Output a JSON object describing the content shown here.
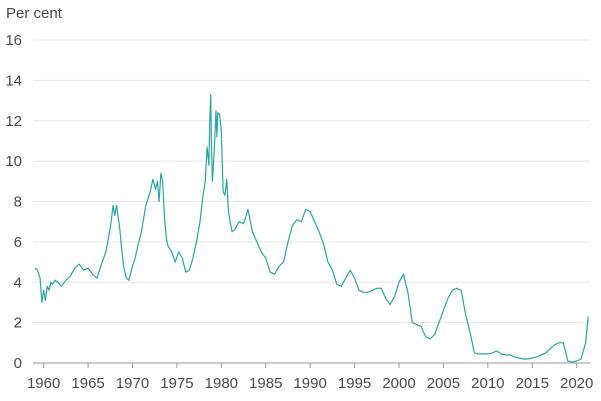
{
  "chart_data": {
    "type": "line",
    "title": "",
    "xlabel": "",
    "ylabel": "Per cent",
    "xlim": [
      1958.8,
      2021.5
    ],
    "ylim": [
      0,
      16
    ],
    "y_ticks": [
      0,
      2,
      4,
      6,
      8,
      10,
      12,
      14,
      16
    ],
    "x_ticks": [
      1960,
      1965,
      1970,
      1975,
      1980,
      1985,
      1990,
      1995,
      2000,
      2005,
      2010,
      2015,
      2020
    ],
    "grid": "horizontal",
    "legend": "none",
    "colors": {
      "series": "#2aa6a2"
    },
    "series": [
      {
        "x": [
          1959.0,
          1959.3,
          1959.6,
          1959.8,
          1960.0,
          1960.2,
          1960.4,
          1960.6,
          1960.8,
          1961.0,
          1961.3,
          1961.6,
          1962.0,
          1962.5,
          1963.0,
          1963.5,
          1964.0,
          1964.5,
          1965.0,
          1965.5,
          1966.0,
          1966.5,
          1967.0,
          1967.3,
          1967.6,
          1967.8,
          1968.0,
          1968.2,
          1968.4,
          1968.6,
          1968.8,
          1969.0,
          1969.3,
          1969.6,
          1970.0,
          1970.3,
          1970.6,
          1971.0,
          1971.5,
          1972.0,
          1972.3,
          1972.6,
          1972.8,
          1973.0,
          1973.2,
          1973.4,
          1973.6,
          1973.8,
          1974.0,
          1974.4,
          1974.8,
          1975.2,
          1975.6,
          1976.0,
          1976.4,
          1976.8,
          1977.2,
          1977.6,
          1977.9,
          1978.2,
          1978.4,
          1978.6,
          1978.7,
          1978.8,
          1978.9,
          1979.0,
          1979.2,
          1979.4,
          1979.5,
          1979.6,
          1979.8,
          1980.0,
          1980.2,
          1980.4,
          1980.6,
          1980.8,
          1981.0,
          1981.2,
          1981.5,
          1982.0,
          1982.5,
          1983.0,
          1983.5,
          1984.0,
          1984.5,
          1985.0,
          1985.5,
          1986.0,
          1986.5,
          1987.0,
          1987.5,
          1988.0,
          1988.5,
          1989.0,
          1989.5,
          1990.0,
          1990.5,
          1991.0,
          1991.5,
          1992.0,
          1992.5,
          1993.0,
          1993.5,
          1994.0,
          1994.5,
          1995.0,
          1995.5,
          1996.0,
          1996.5,
          1997.0,
          1997.5,
          1998.0,
          1998.5,
          1999.0,
          1999.5,
          2000.0,
          2000.5,
          2001.0,
          2001.5,
          2002.0,
          2002.5,
          2003.0,
          2003.5,
          2004.0,
          2004.5,
          2005.0,
          2005.5,
          2006.0,
          2006.5,
          2007.0,
          2007.5,
          2008.0,
          2008.5,
          2009.0,
          2009.5,
          2010.0,
          2010.5,
          2011.0,
          2011.5,
          2012.0,
          2012.5,
          2013.0,
          2013.5,
          2014.0,
          2014.5,
          2015.0,
          2015.5,
          2016.0,
          2016.5,
          2017.0,
          2017.5,
          2018.0,
          2018.5,
          2019.0,
          2019.5,
          2020.0,
          2020.5,
          2021.0,
          2021.3
        ],
        "y": [
          4.7,
          4.6,
          4.2,
          3.0,
          3.6,
          3.1,
          3.8,
          3.6,
          4.0,
          3.9,
          4.1,
          4.0,
          3.8,
          4.1,
          4.3,
          4.7,
          4.9,
          4.6,
          4.7,
          4.4,
          4.2,
          4.9,
          5.5,
          6.2,
          7.0,
          7.8,
          7.3,
          7.8,
          7.2,
          6.5,
          5.6,
          4.8,
          4.2,
          4.1,
          4.8,
          5.2,
          5.8,
          6.5,
          7.8,
          8.5,
          9.1,
          8.6,
          9.0,
          8.0,
          9.4,
          9.0,
          7.2,
          6.2,
          5.8,
          5.5,
          5.0,
          5.5,
          5.2,
          4.5,
          4.6,
          5.2,
          6.0,
          7.0,
          8.2,
          9.0,
          10.7,
          9.8,
          12.0,
          13.3,
          10.5,
          9.0,
          10.5,
          12.5,
          11.2,
          12.4,
          12.3,
          11.5,
          8.5,
          8.3,
          9.1,
          7.5,
          7.0,
          6.5,
          6.6,
          7.0,
          6.9,
          7.6,
          6.5,
          6.0,
          5.5,
          5.2,
          4.5,
          4.4,
          4.8,
          5.0,
          6.0,
          6.8,
          7.1,
          7.0,
          7.6,
          7.5,
          7.0,
          6.5,
          5.9,
          5.0,
          4.6,
          3.9,
          3.8,
          4.2,
          4.6,
          4.2,
          3.6,
          3.5,
          3.5,
          3.6,
          3.7,
          3.7,
          3.2,
          2.9,
          3.3,
          4.0,
          4.4,
          3.5,
          2.0,
          1.9,
          1.8,
          1.3,
          1.2,
          1.4,
          2.0,
          2.6,
          3.2,
          3.6,
          3.7,
          3.6,
          2.4,
          1.5,
          0.5,
          0.45,
          0.45,
          0.45,
          0.5,
          0.6,
          0.45,
          0.4,
          0.4,
          0.3,
          0.25,
          0.2,
          0.2,
          0.25,
          0.3,
          0.4,
          0.5,
          0.7,
          0.9,
          1.0,
          1.0,
          0.1,
          0.05,
          0.1,
          0.2,
          1.0,
          2.3
        ]
      }
    ]
  }
}
